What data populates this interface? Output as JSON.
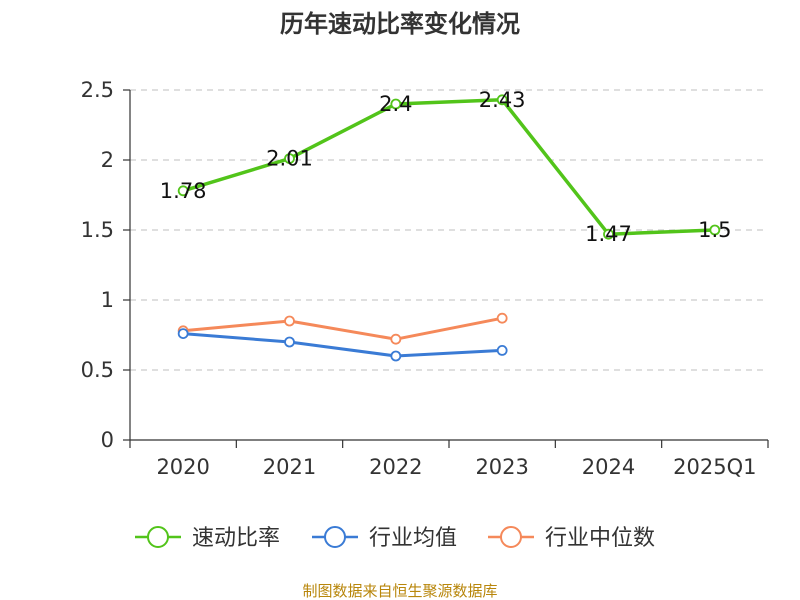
{
  "chart_data": {
    "type": "line",
    "title": "历年速动比率变化情况",
    "categories": [
      "2020",
      "2021",
      "2022",
      "2023",
      "2024",
      "2025Q1"
    ],
    "ylim": [
      0,
      2.5
    ],
    "yticks": [
      "0",
      "0.5",
      "1",
      "1.5",
      "2",
      "2.5"
    ],
    "grid": true,
    "legend_position": "bottom",
    "series": [
      {
        "name": "速动比率",
        "color": "#52c41a",
        "values": [
          1.78,
          2.01,
          2.4,
          2.43,
          1.47,
          1.5
        ],
        "labels": [
          "1.78",
          "2.01",
          "2.4",
          "2.43",
          "1.47",
          "1.5"
        ]
      },
      {
        "name": "行业均值",
        "color": "#3a7bd5",
        "values": [
          0.76,
          0.7,
          0.6,
          0.64,
          null,
          null
        ]
      },
      {
        "name": "行业中位数",
        "color": "#f5895a",
        "values": [
          0.78,
          0.85,
          0.72,
          0.87,
          null,
          null
        ]
      }
    ]
  },
  "footer": {
    "source": "制图数据来自恒生聚源数据库"
  }
}
